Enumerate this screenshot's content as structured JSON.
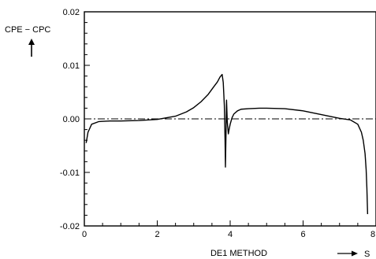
{
  "chart_data": {
    "type": "line",
    "xlabel": "DE1 METHOD",
    "x_axis_symbol": "S",
    "ylabel": "CPE − CPC",
    "xlim": [
      0,
      8
    ],
    "ylim": [
      -0.02,
      0.02
    ],
    "x_ticks": [
      "0",
      "2",
      "4",
      "6",
      "8"
    ],
    "y_ticks": [
      "0.02",
      "0.01",
      "0.00",
      "-0.01",
      "-0.02"
    ],
    "reference_line": {
      "y": 0.0,
      "style": "dash-dot"
    },
    "grid": false,
    "series": [
      {
        "x": [
          0.05,
          0.1,
          0.2,
          0.4,
          0.7,
          1.0,
          1.5,
          2.0,
          2.5,
          2.8,
          3.0,
          3.2,
          3.4,
          3.55,
          3.65,
          3.72,
          3.78,
          3.81,
          3.84,
          3.86,
          3.87,
          3.89,
          3.9,
          3.92,
          3.95,
          3.97,
          4.0,
          4.05,
          4.1,
          4.2,
          4.3,
          4.5,
          4.8,
          5.0,
          5.5,
          6.0,
          6.5,
          7.0,
          7.3,
          7.5,
          7.6,
          7.65,
          7.7,
          7.73,
          7.75,
          7.77
        ],
        "y": [
          -0.0045,
          -0.0025,
          -0.001,
          -0.0005,
          -0.0004,
          -0.0004,
          -0.0003,
          -0.0001,
          0.0005,
          0.0013,
          0.0021,
          0.0032,
          0.0046,
          0.006,
          0.0069,
          0.0078,
          0.0083,
          0.0068,
          0.0025,
          -0.004,
          -0.009,
          -0.001,
          0.0035,
          -0.0005,
          -0.0028,
          -0.002,
          -0.001,
          0.0002,
          0.0009,
          0.0015,
          0.0018,
          0.0019,
          0.002,
          0.002,
          0.0019,
          0.0015,
          0.0008,
          0.0001,
          -0.0002,
          -0.001,
          -0.0025,
          -0.004,
          -0.0065,
          -0.0095,
          -0.013,
          -0.0178
        ]
      }
    ]
  }
}
